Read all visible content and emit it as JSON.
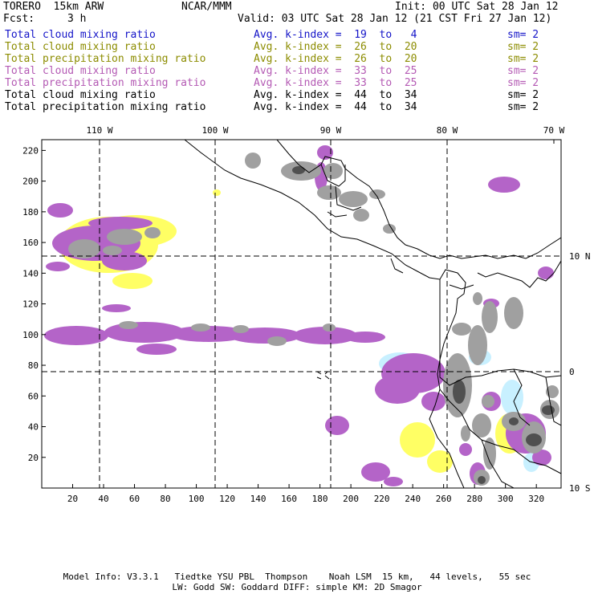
{
  "header": {
    "model_name": "TORERO  15km ARW",
    "org": "NCAR/MMM",
    "init": "Init: 00 UTC Sat 28 Jan 12",
    "fcst_label": "Fcst:",
    "fcst_value": "3 h",
    "valid": "Valid: 03 UTC Sat 28 Jan 12 (21 CST Fri 27 Jan 12)"
  },
  "legend": [
    {
      "field": "Total cloud mixing ratio",
      "index": "Avg. k-index =  19  to   4",
      "sm": "sm= 2",
      "color": "#1414c8"
    },
    {
      "field": "Total cloud mixing ratio",
      "index": "Avg. k-index =  26  to  20",
      "sm": "sm= 2",
      "color": "#8c8c00"
    },
    {
      "field": "Total precipitation mixing ratio",
      "index": "Avg. k-index =  26  to  20",
      "sm": "sm= 2",
      "color": "#8c8c00"
    },
    {
      "field": "Total cloud mixing ratio",
      "index": "Avg. k-index =  33  to  25",
      "sm": "sm= 2",
      "color": "#b45ab4"
    },
    {
      "field": "Total precipitation mixing ratio",
      "index": "Avg. k-index =  33  to  25",
      "sm": "sm= 2",
      "color": "#b45ab4"
    },
    {
      "field": "Total cloud mixing ratio",
      "index": "Avg. k-index =  44  to  34",
      "sm": "sm= 2",
      "color": "#000000"
    },
    {
      "field": "Total precipitation mixing ratio",
      "index": "Avg. k-index =  44  to  34",
      "sm": "sm= 2",
      "color": "#000000"
    }
  ],
  "map": {
    "lon_labels": [
      "110 W",
      "100 W",
      "90 W",
      "80 W",
      "70 W"
    ],
    "lat_labels": [
      "10 N",
      "0",
      "10 S"
    ],
    "x_ticks": [
      "20",
      "40",
      "60",
      "80",
      "100",
      "120",
      "140",
      "160",
      "180",
      "200",
      "220",
      "240",
      "260",
      "280",
      "300",
      "320"
    ],
    "y_ticks": [
      "20",
      "40",
      "60",
      "80",
      "100",
      "120",
      "140",
      "160",
      "180",
      "200",
      "220"
    ],
    "colors": {
      "light_blue": "#c8f0ff",
      "yellow": "#ffff64",
      "magenta": "#b464c8",
      "gray": "#a0a0a0",
      "dark_gray": "#505050"
    }
  },
  "footer": {
    "line1": "Model Info: V3.3.1   Tiedtke YSU PBL  Thompson    Noah LSM  15 km,   44 levels,   55 sec",
    "line2": "LW: Godd SW: Goddard DIFF: simple KM: 2D Smagor"
  }
}
